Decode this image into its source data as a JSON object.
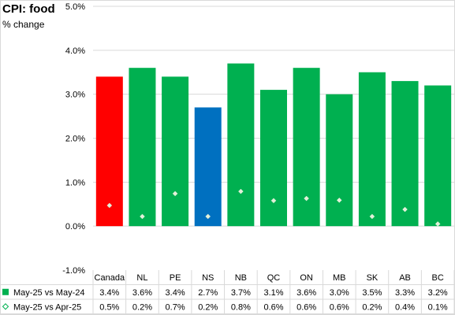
{
  "chart_data": {
    "type": "bar",
    "title": "CPI: food",
    "subtitle": "% change",
    "categories": [
      "Canada",
      "NL",
      "PE",
      "NS",
      "NB",
      "QC",
      "ON",
      "MB",
      "SK",
      "AB",
      "BC"
    ],
    "series": [
      {
        "name": "May-25 vs May-24",
        "values": [
          3.4,
          3.6,
          3.4,
          2.7,
          3.7,
          3.1,
          3.6,
          3.0,
          3.5,
          3.3,
          3.2
        ],
        "display": [
          "3.4%",
          "3.6%",
          "3.4%",
          "2.7%",
          "3.7%",
          "3.1%",
          "3.6%",
          "3.0%",
          "3.5%",
          "3.3%",
          "3.2%"
        ],
        "marker": "bar"
      },
      {
        "name": "May-25 vs Apr-25",
        "values": [
          0.47,
          0.22,
          0.74,
          0.22,
          0.79,
          0.58,
          0.63,
          0.59,
          0.22,
          0.38,
          0.05
        ],
        "display": [
          "0.5%",
          "0.2%",
          "0.7%",
          "0.2%",
          "0.8%",
          "0.6%",
          "0.6%",
          "0.6%",
          "0.2%",
          "0.4%",
          "0.1%"
        ],
        "marker": "diamond"
      }
    ],
    "bar_colors": [
      "#ff0000",
      "#00b050",
      "#00b050",
      "#0070c0",
      "#00b050",
      "#00b050",
      "#00b050",
      "#00b050",
      "#00b050",
      "#00b050",
      "#00b050"
    ],
    "series_color": "#00b050",
    "marker_fill": "#e2f0d9",
    "ylim": [
      -1.0,
      5.0
    ],
    "yticks": [
      -1.0,
      0.0,
      1.0,
      2.0,
      3.0,
      4.0,
      5.0
    ],
    "ytick_labels": [
      "-1.0%",
      "0.0%",
      "1.0%",
      "2.0%",
      "3.0%",
      "4.0%",
      "5.0%"
    ],
    "grid": true,
    "legend": "data table below chart"
  }
}
